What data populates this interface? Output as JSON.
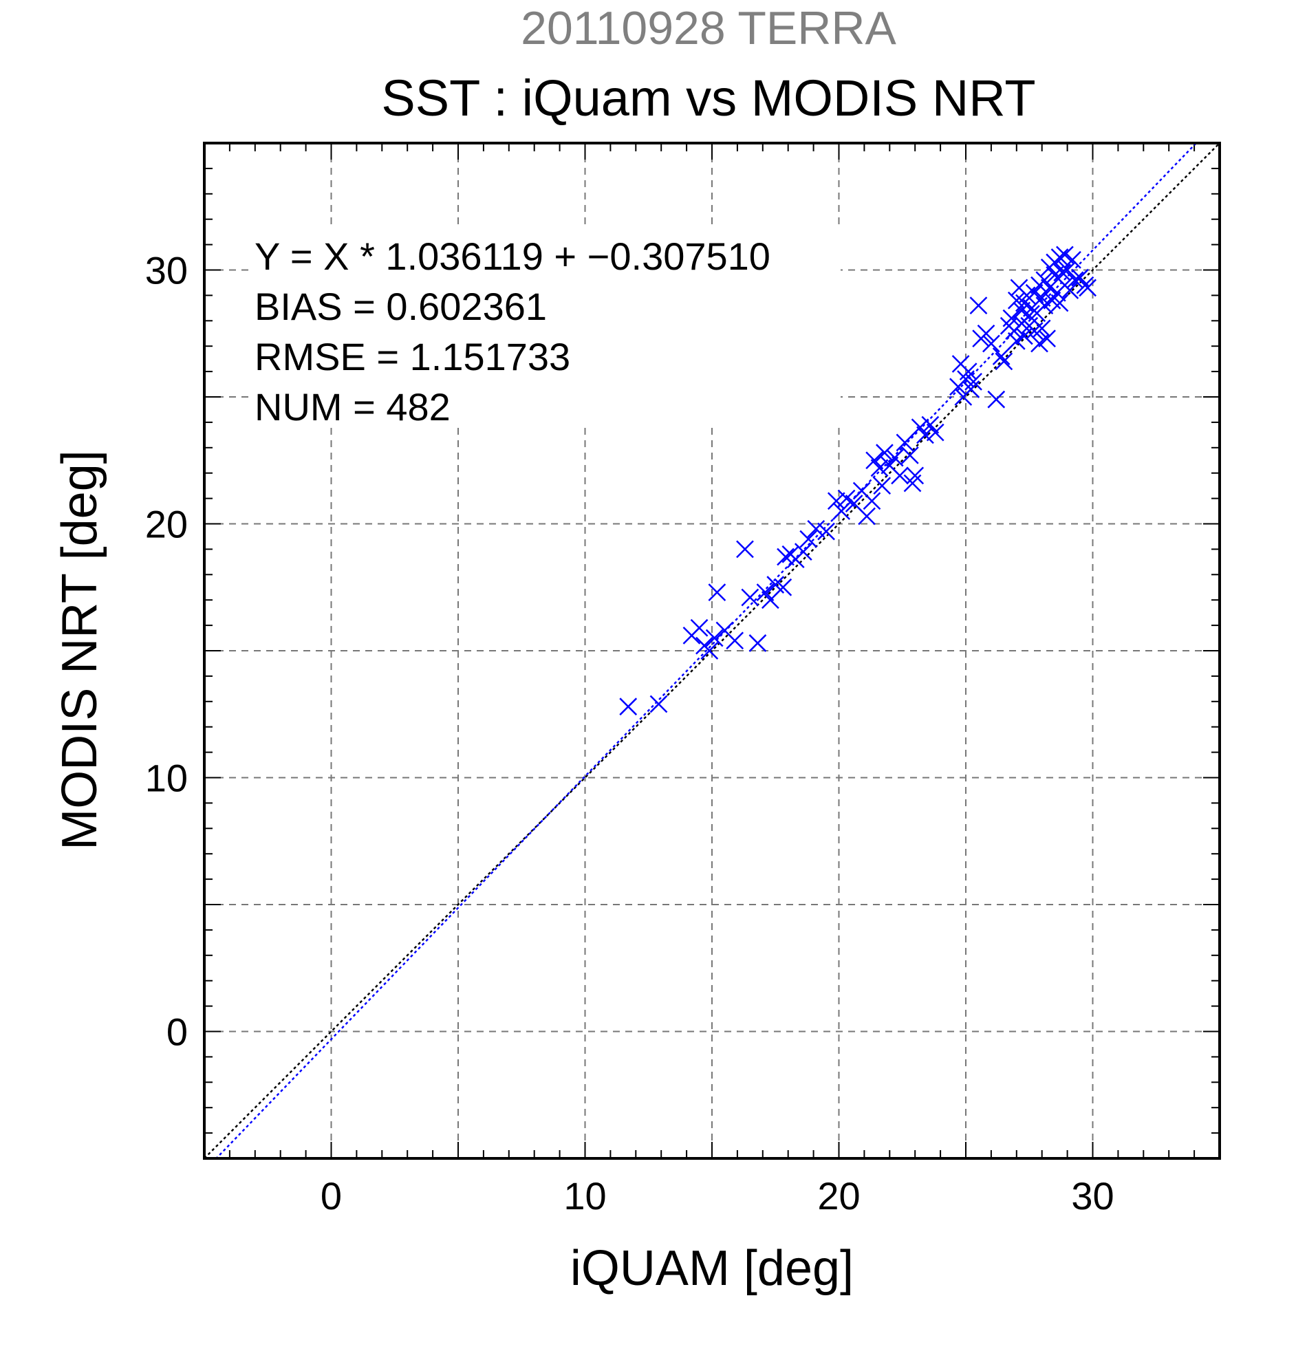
{
  "figure": {
    "supertitle": "20110928 TERRA",
    "title": "SST : iQuam vs MODIS NRT"
  },
  "colors": {
    "points": "#0000ff",
    "fit_line": "#0000ff",
    "identity_line": "#000000",
    "grid": "#777777",
    "supertitle": "#808080"
  },
  "stats": {
    "equation": "Y = X * 1.036119 + −0.307510",
    "bias": "BIAS = 0.602361",
    "rmse": "RMSE = 1.151733",
    "num": "NUM = 482"
  },
  "chart_data": {
    "type": "scatter",
    "xlabel": "iQUAM [deg]",
    "ylabel": "MODIS NRT [deg]",
    "xlim": [
      -5,
      35
    ],
    "ylim": [
      -5,
      35
    ],
    "xticks": [
      0,
      10,
      20,
      30
    ],
    "yticks": [
      0,
      10,
      20,
      30
    ],
    "grid": true,
    "marker": "x",
    "fit": {
      "slope": 1.036119,
      "intercept": -0.30751
    },
    "identity_line": true,
    "points": [
      [
        11.7,
        12.8
      ],
      [
        12.9,
        12.9
      ],
      [
        14.2,
        15.6
      ],
      [
        14.5,
        15.9
      ],
      [
        14.7,
        15.2
      ],
      [
        14.9,
        15.0
      ],
      [
        15.1,
        15.5
      ],
      [
        15.2,
        17.3
      ],
      [
        15.5,
        15.8
      ],
      [
        15.9,
        15.4
      ],
      [
        16.3,
        19.0
      ],
      [
        16.5,
        17.1
      ],
      [
        16.8,
        15.3
      ],
      [
        17.1,
        17.3
      ],
      [
        17.3,
        17.0
      ],
      [
        17.5,
        17.6
      ],
      [
        17.8,
        17.5
      ],
      [
        17.9,
        18.7
      ],
      [
        18.1,
        18.8
      ],
      [
        18.3,
        18.6
      ],
      [
        18.6,
        18.9
      ],
      [
        18.8,
        19.4
      ],
      [
        19.1,
        19.8
      ],
      [
        19.5,
        19.7
      ],
      [
        19.9,
        20.9
      ],
      [
        20.1,
        20.5
      ],
      [
        20.3,
        21.0
      ],
      [
        20.6,
        20.8
      ],
      [
        20.9,
        21.3
      ],
      [
        21.1,
        20.3
      ],
      [
        21.3,
        20.9
      ],
      [
        21.4,
        22.5
      ],
      [
        21.6,
        22.2
      ],
      [
        21.7,
        21.5
      ],
      [
        21.8,
        22.8
      ],
      [
        22.0,
        22.3
      ],
      [
        22.2,
        22.6
      ],
      [
        22.4,
        21.9
      ],
      [
        22.6,
        23.2
      ],
      [
        22.8,
        22.7
      ],
      [
        22.9,
        21.6
      ],
      [
        23.0,
        21.9
      ],
      [
        23.2,
        23.8
      ],
      [
        23.4,
        23.5
      ],
      [
        23.6,
        23.9
      ],
      [
        23.8,
        23.6
      ],
      [
        24.7,
        25.4
      ],
      [
        24.8,
        26.3
      ],
      [
        24.9,
        25.0
      ],
      [
        25.0,
        25.7
      ],
      [
        25.1,
        26.0
      ],
      [
        25.2,
        25.3
      ],
      [
        25.3,
        25.6
      ],
      [
        25.5,
        28.6
      ],
      [
        25.6,
        27.3
      ],
      [
        25.8,
        27.5
      ],
      [
        26.0,
        27.1
      ],
      [
        26.2,
        24.9
      ],
      [
        26.4,
        26.6
      ],
      [
        26.5,
        26.4
      ],
      [
        26.7,
        27.8
      ],
      [
        26.8,
        28.1
      ],
      [
        26.9,
        27.6
      ],
      [
        27.0,
        28.8
      ],
      [
        27.0,
        27.2
      ],
      [
        27.1,
        29.3
      ],
      [
        27.2,
        28.4
      ],
      [
        27.2,
        27.9
      ],
      [
        27.3,
        28.7
      ],
      [
        27.3,
        27.4
      ],
      [
        27.4,
        29.0
      ],
      [
        27.5,
        28.2
      ],
      [
        27.5,
        27.8
      ],
      [
        27.6,
        28.5
      ],
      [
        27.7,
        29.1
      ],
      [
        27.7,
        27.6
      ],
      [
        27.8,
        28.3
      ],
      [
        27.9,
        29.4
      ],
      [
        27.9,
        27.1
      ],
      [
        28.0,
        28.9
      ],
      [
        28.0,
        27.7
      ],
      [
        28.1,
        29.6
      ],
      [
        28.1,
        28.6
      ],
      [
        28.2,
        27.3
      ],
      [
        28.3,
        30.1
      ],
      [
        28.3,
        29.3
      ],
      [
        28.4,
        28.8
      ],
      [
        28.5,
        30.3
      ],
      [
        28.5,
        29.8
      ],
      [
        28.6,
        29.1
      ],
      [
        28.7,
        30.5
      ],
      [
        28.7,
        28.7
      ],
      [
        28.8,
        29.9
      ],
      [
        28.9,
        30.6
      ],
      [
        28.9,
        29.4
      ],
      [
        29.0,
        30.0
      ],
      [
        29.1,
        29.2
      ],
      [
        29.2,
        30.4
      ],
      [
        29.3,
        29.6
      ],
      [
        29.5,
        29.7
      ],
      [
        29.7,
        29.4
      ],
      [
        29.8,
        29.3
      ]
    ]
  }
}
